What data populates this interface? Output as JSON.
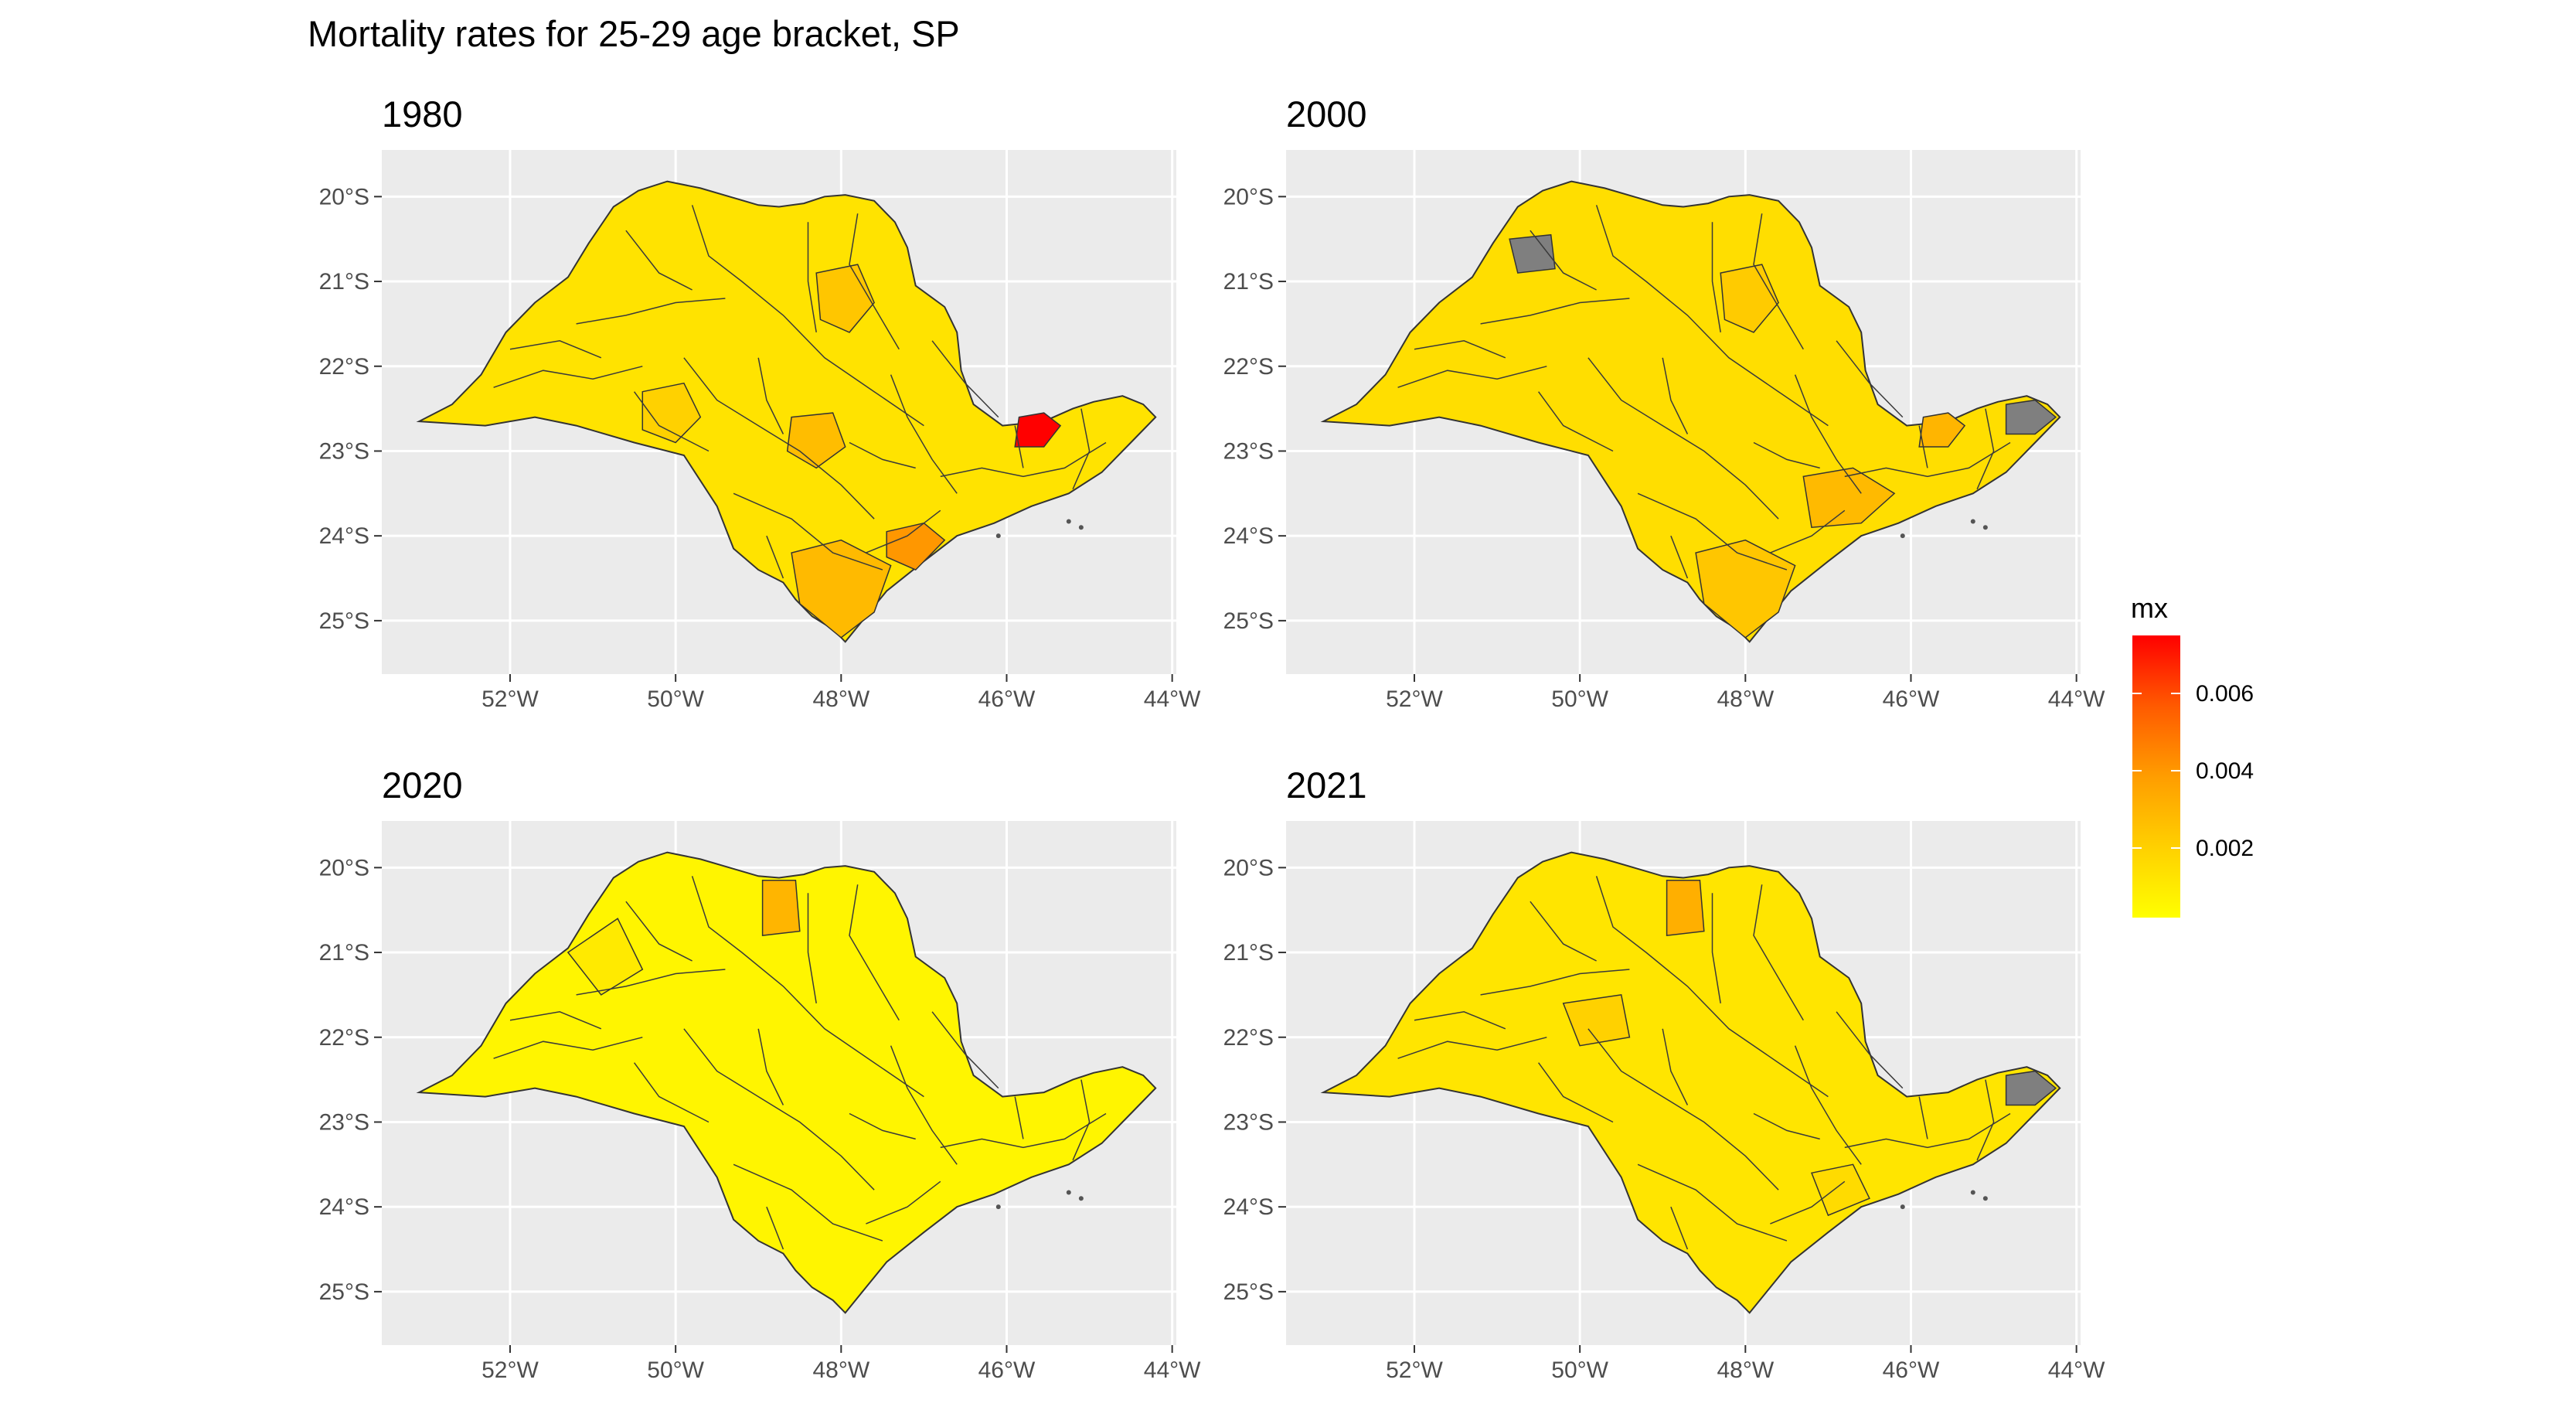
{
  "title": "Mortality rates for 25-29 age bracket, SP",
  "legend": {
    "title": "mx",
    "placement": "right",
    "colormap": [
      "#ffff00",
      "#ffd000",
      "#ff9d00",
      "#ff5a00",
      "#ff0000"
    ],
    "range": [
      0.0002,
      0.0075
    ],
    "ticks": [
      0.002,
      0.004,
      0.006
    ],
    "tick_labels": [
      "0.002",
      "0.004",
      "0.006"
    ],
    "na_color": "#7f7f7f"
  },
  "axes": {
    "lon_ticks": [
      "52°W",
      "50°W",
      "48°W",
      "46°W",
      "44°W"
    ],
    "lat_ticks": [
      "20°S",
      "21°S",
      "22°S",
      "23°S",
      "24°S",
      "25°S"
    ],
    "lon_values": [
      -52,
      -50,
      -48,
      -46,
      -44
    ],
    "lat_values": [
      -20,
      -21,
      -22,
      -23,
      -24,
      -25
    ],
    "panel_background": "#ebebeb",
    "grid": true
  },
  "chart_data": [
    {
      "type": "map",
      "subtitle": "1980",
      "base_rate": 0.0013,
      "highlights": [
        {
          "region": "central-west-interior",
          "value": 0.002
        },
        {
          "region": "north-center",
          "value": 0.0024
        },
        {
          "region": "center-east",
          "value": 0.0027
        },
        {
          "region": "south-coast",
          "value": 0.0028
        },
        {
          "region": "coast-santos",
          "value": 0.004
        },
        {
          "region": "paraiba-valley",
          "value": 0.0075
        }
      ],
      "no_data": []
    },
    {
      "type": "map",
      "subtitle": "2000",
      "base_rate": 0.0015,
      "highlights": [
        {
          "region": "north-center",
          "value": 0.0022
        },
        {
          "region": "metro-sao-paulo",
          "value": 0.0028
        },
        {
          "region": "paraiba-valley",
          "value": 0.003
        },
        {
          "region": "south-coast",
          "value": 0.0024
        }
      ],
      "no_data": [
        "northwest-small",
        "northeast-tip"
      ]
    },
    {
      "type": "map",
      "subtitle": "2020",
      "base_rate": 0.0006,
      "highlights": [
        {
          "region": "north-border",
          "value": 0.003
        },
        {
          "region": "northwest",
          "value": 0.001
        }
      ],
      "no_data": []
    },
    {
      "type": "map",
      "subtitle": "2021",
      "base_rate": 0.0012,
      "highlights": [
        {
          "region": "north-border",
          "value": 0.0032
        },
        {
          "region": "center-west",
          "value": 0.002
        },
        {
          "region": "southeast",
          "value": 0.0016
        }
      ],
      "no_data": [
        "northeast-tip"
      ]
    }
  ]
}
